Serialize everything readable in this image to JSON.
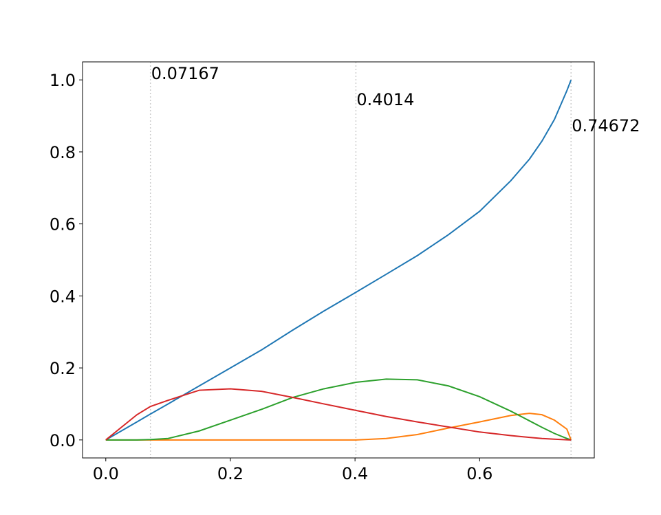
{
  "chart_data": {
    "type": "line",
    "x": [
      0,
      0.05,
      0.07167,
      0.1,
      0.15,
      0.2,
      0.25,
      0.3,
      0.35,
      0.4014,
      0.45,
      0.5,
      0.55,
      0.6,
      0.65,
      0.68,
      0.7,
      0.72,
      0.74,
      0.74672
    ],
    "series": [
      {
        "color": "#1f77b4",
        "values": [
          0,
          0.05,
          0.072,
          0.1,
          0.15,
          0.2,
          0.25,
          0.305,
          0.358,
          0.41,
          0.46,
          0.512,
          0.57,
          0.635,
          0.72,
          0.78,
          0.83,
          0.89,
          0.97,
          1.0
        ]
      },
      {
        "color": "#ff7f0e",
        "values": [
          0,
          0,
          0,
          0,
          0,
          0,
          0,
          0,
          0,
          0,
          0.004,
          0.015,
          0.033,
          0.05,
          0.068,
          0.074,
          0.07,
          0.055,
          0.03,
          0
        ]
      },
      {
        "color": "#2ca02c",
        "values": [
          0,
          0,
          0.001,
          0.004,
          0.025,
          0.055,
          0.085,
          0.118,
          0.142,
          0.16,
          0.169,
          0.167,
          0.15,
          0.12,
          0.08,
          0.053,
          0.035,
          0.018,
          0.004,
          0
        ]
      },
      {
        "color": "#d62728",
        "values": [
          0,
          0.07,
          0.093,
          0.11,
          0.138,
          0.142,
          0.135,
          0.118,
          0.1,
          0.082,
          0.065,
          0.05,
          0.036,
          0.022,
          0.012,
          0.007,
          0.004,
          0.002,
          0.0003,
          0
        ]
      }
    ],
    "vlines": [
      0.07167,
      0.4014,
      0.74672
    ],
    "vline_color": "#cccccc",
    "xlim": [
      -0.0373,
      0.784
    ],
    "ylim": [
      -0.05,
      1.05
    ],
    "xticks": [
      {
        "value": 0,
        "label": "0.0"
      },
      0.2,
      0.4,
      0.6
    ],
    "yticks": [
      {
        "value": 0,
        "label": "0.0"
      },
      0.2,
      0.4,
      0.6,
      0.8,
      {
        "value": 1,
        "label": "1.0"
      }
    ]
  }
}
